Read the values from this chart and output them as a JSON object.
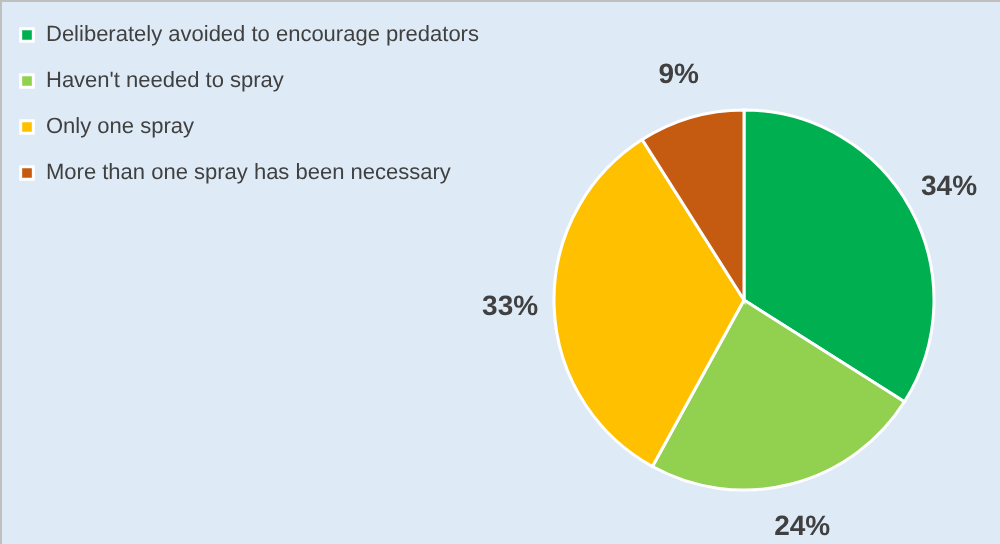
{
  "chart_data": {
    "type": "pie",
    "categories": [
      "Deliberately avoided to encourage predators",
      "Haven't needed to spray",
      "Only one spray",
      "More than one spray has been necessary"
    ],
    "values": [
      34,
      24,
      33,
      9
    ],
    "colors": [
      "#00b050",
      "#92d050",
      "#ffc000",
      "#c55a11"
    ],
    "value_labels": [
      "34%",
      "24%",
      "33%",
      "9%"
    ],
    "legend": "top left"
  }
}
